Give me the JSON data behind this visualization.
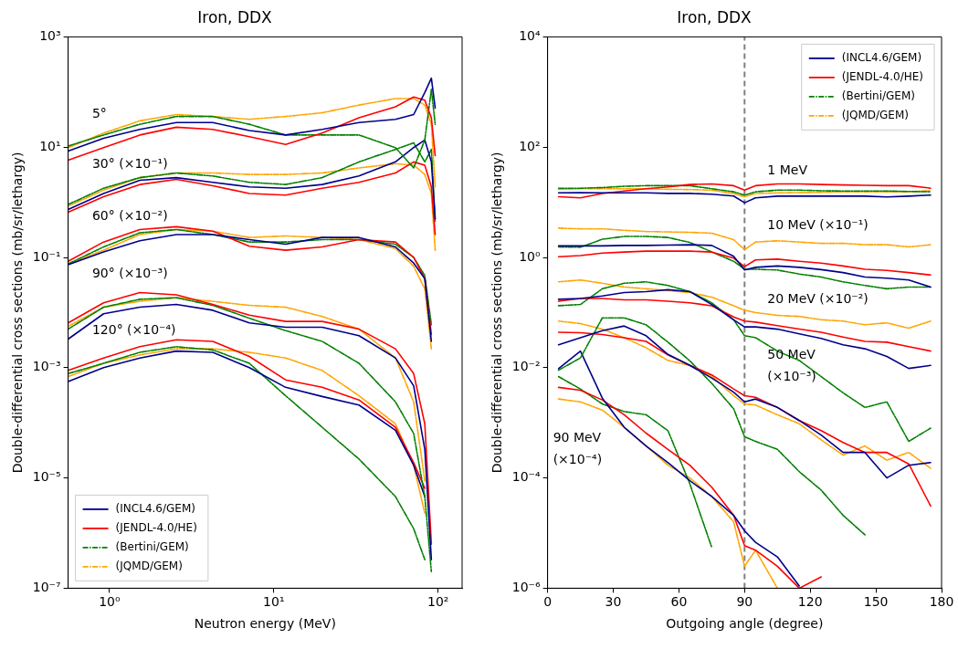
{
  "chart_data": [
    {
      "type": "line",
      "title": "Iron, DDX",
      "xlabel": "Neutron energy (MeV)",
      "ylabel": "Double-differential cross sections (mb/sr/lethargy)",
      "log": "xy",
      "grid": false,
      "legend": "bottom left",
      "xlim": [
        0.56,
        140
      ],
      "xticks": [
        {
          "value": 1,
          "label": "10⁰"
        },
        {
          "value": 10,
          "label": "10¹"
        },
        {
          "value": 100,
          "label": "10²"
        }
      ],
      "ylim": [
        1e-07,
        1000
      ],
      "yticks": [
        {
          "value": 1e-07,
          "label": "10⁻⁷"
        },
        {
          "value": 1e-05,
          "label": "10⁻⁵"
        },
        {
          "value": 0.001,
          "label": "10⁻³"
        },
        {
          "value": 0.1,
          "label": "10⁻¹"
        },
        {
          "value": 10,
          "label": "10¹"
        },
        {
          "value": 1000,
          "label": "10³"
        }
      ],
      "x": [
        0.56,
        0.92,
        1.53,
        2.55,
        4.25,
        7.1,
        11.8,
        19.7,
        33,
        55,
        71,
        83,
        91,
        96
      ],
      "annotations": [
        "5°",
        "30° (×10⁻¹)",
        "60° (×10⁻²)",
        "90° (×10⁻³)",
        "120° (×10⁻⁴)"
      ],
      "series": [
        {
          "name": "(INCL4.6/GEM)",
          "color": "#00008b",
          "line_style": "solid",
          "values": [
            8.5,
            14.5,
            21,
            28,
            28,
            20,
            16.6,
            21,
            28,
            32,
            39,
            98,
            178,
            51
          ]
        },
        {
          "name": "(JENDL-4.0/HE)",
          "color": "#ff0000",
          "line_style": "solid",
          "values": [
            5.8,
            9.8,
            16.6,
            23,
            21,
            15.5,
            11.2,
            18,
            34,
            54,
            81,
            71,
            34,
            7
          ]
        },
        {
          "name": "(Bertini/GEM)",
          "color": "#008000",
          "line_style": "dashdot",
          "values": [
            10.5,
            16.6,
            26,
            36,
            36,
            26,
            16.6,
            16.6,
            16.6,
            9.8,
            4.2,
            13.5,
            112,
            26
          ]
        },
        {
          "name": "(JQMD/GEM)",
          "color": "#ffa500",
          "line_style": "dashdot",
          "values": [
            9.8,
            18,
            30,
            39,
            36,
            32,
            36,
            42,
            58,
            76,
            76,
            58,
            26,
            1.9
          ]
        },
        {
          "color": "#00008b",
          "line_style": "solid",
          "values": [
            0.74,
            1.44,
            2.5,
            2.8,
            2.3,
            1.9,
            1.8,
            2.1,
            3.0,
            5.4,
            9.8,
            13.5,
            5.4,
            0.5
          ]
        },
        {
          "color": "#ff0000",
          "line_style": "solid",
          "values": [
            0.66,
            1.26,
            2.1,
            2.6,
            2.0,
            1.44,
            1.35,
            1.8,
            2.3,
            3.4,
            5.4,
            4.7,
            1.9,
            0.26
          ]
        },
        {
          "color": "#008000",
          "line_style": "dashdot",
          "values": [
            0.91,
            1.8,
            2.8,
            3.4,
            3.0,
            2.3,
            2.1,
            2.8,
            5.4,
            9.1,
            12,
            5.4,
            9.1,
            0.45
          ]
        },
        {
          "color": "#ffa500",
          "line_style": "dashdot",
          "values": [
            0.85,
            1.66,
            2.8,
            3.4,
            3.4,
            3.2,
            3.2,
            3.4,
            4.2,
            5.0,
            4.7,
            3.2,
            1.44,
            0.135
          ]
        },
        {
          "color": "#00008b",
          "line_style": "solid",
          "values": [
            0.074,
            0.126,
            0.2,
            0.26,
            0.26,
            0.21,
            0.174,
            0.23,
            0.23,
            0.155,
            0.079,
            0.041,
            0.003,
            null
          ]
        },
        {
          "color": "#ff0000",
          "line_style": "solid",
          "values": [
            0.085,
            0.19,
            0.32,
            0.36,
            0.3,
            0.16,
            0.135,
            0.155,
            0.21,
            0.19,
            0.1,
            0.041,
            0.004,
            null
          ]
        },
        {
          "color": "#008000",
          "line_style": "dashdot",
          "values": [
            0.076,
            0.155,
            0.28,
            0.32,
            0.26,
            0.19,
            0.19,
            0.21,
            0.21,
            0.174,
            0.1,
            0.047,
            0.006,
            null
          ]
        },
        {
          "color": "#ffa500",
          "line_style": "dashdot",
          "values": [
            0.076,
            0.135,
            0.26,
            0.32,
            0.3,
            0.23,
            0.245,
            0.23,
            0.21,
            0.145,
            0.069,
            0.027,
            0.0022,
            null
          ]
        },
        {
          "color": "#00008b",
          "line_style": "solid",
          "values": [
            0.0033,
            0.0095,
            0.0125,
            0.014,
            0.011,
            0.0065,
            0.0054,
            0.0054,
            0.0038,
            0.0015,
            0.00047,
            3.3e-05,
            3.3e-07,
            null
          ]
        },
        {
          "color": "#ff0000",
          "line_style": "solid",
          "values": [
            0.0065,
            0.015,
            0.023,
            0.021,
            0.014,
            0.009,
            0.0069,
            0.0069,
            0.005,
            0.0022,
            0.00078,
            9.6e-05,
            6.3e-07,
            null
          ]
        },
        {
          "color": "#008000",
          "line_style": "dashdot",
          "values": [
            0.005,
            0.0125,
            0.0174,
            0.0186,
            0.0135,
            0.0079,
            0.0047,
            0.003,
            0.0012,
            0.00024,
            6.4e-05,
            4.6e-06,
            2e-07,
            null
          ]
        },
        {
          "color": "#ffa500",
          "line_style": "dashdot",
          "values": [
            0.0056,
            0.0125,
            0.016,
            0.0186,
            0.016,
            0.0135,
            0.0125,
            0.0085,
            0.005,
            0.0015,
            0.00024,
            8.9e-06,
            null,
            null
          ]
        },
        {
          "color": "#00008b",
          "line_style": "solid",
          "values": [
            0.00056,
            0.001,
            0.0015,
            0.002,
            0.0019,
            0.001,
            0.00044,
            0.0003,
            0.00021,
            7.3e-05,
            1.7e-05,
            4.6e-06,
            null,
            null
          ]
        },
        {
          "color": "#ff0000",
          "line_style": "solid",
          "values": [
            0.00089,
            0.0015,
            0.0024,
            0.0032,
            0.003,
            0.0016,
            0.0006,
            0.00044,
            0.00026,
            8.3e-05,
            1.9e-05,
            6.5e-06,
            null,
            null
          ]
        },
        {
          "color": "#008000",
          "line_style": "dashdot",
          "values": [
            0.00078,
            0.0012,
            0.0019,
            0.0024,
            0.0021,
            0.0012,
            0.00031,
            8.3e-05,
            2.2e-05,
            4.6e-06,
            1.2e-06,
            3.3e-07,
            null,
            null
          ]
        },
        {
          "color": "#ffa500",
          "line_style": "dashdot",
          "values": [
            0.00069,
            0.0012,
            0.0017,
            0.0022,
            0.0022,
            0.0019,
            0.0015,
            0.00089,
            0.00031,
            9.6e-05,
            1.7e-05,
            2.3e-06,
            null,
            null
          ]
        }
      ]
    },
    {
      "type": "line",
      "title": "Iron, DDX",
      "xlabel": "Outgoing angle (degree)",
      "ylabel": "Double-differential cross sections (mb/sr/lethargy)",
      "log": "y",
      "grid": false,
      "legend": "top right",
      "xlim": [
        0,
        180
      ],
      "xticks": [
        0,
        30,
        60,
        90,
        120,
        150,
        180
      ],
      "ylim": [
        1e-06,
        10000
      ],
      "yticks": [
        {
          "value": 1e-06,
          "label": "10⁻⁶"
        },
        {
          "value": 0.0001,
          "label": "10⁻⁴"
        },
        {
          "value": 0.01,
          "label": "10⁻²"
        },
        {
          "value": 1,
          "label": "10⁰"
        },
        {
          "value": 100,
          "label": "10²"
        },
        {
          "value": 10000,
          "label": "10⁴"
        }
      ],
      "x": [
        5,
        15,
        25,
        35,
        45,
        55,
        65,
        75,
        85,
        90,
        95,
        105,
        115,
        125,
        135,
        145,
        155,
        165,
        175
      ],
      "ref_lines": [
        {
          "axis": "x",
          "value": 90,
          "color": "#808080",
          "line_style": "dashed"
        }
      ],
      "annotations": [
        "1 MeV",
        "10 MeV (×10⁻¹)",
        "20 MeV (×10⁻²)",
        "50 MeV\n(×10⁻³)",
        "90 MeV\n(×10⁻⁴)"
      ],
      "series": [
        {
          "name": "(INCL4.6/GEM)",
          "color": "#00008b",
          "line_style": "solid",
          "values": [
            14.8,
            15,
            14.8,
            14.8,
            14.8,
            14.5,
            14.5,
            14,
            13,
            9.8,
            12,
            12.9,
            12.9,
            12.9,
            12.9,
            12.9,
            12.5,
            12.9,
            13.5
          ]
        },
        {
          "name": "(JENDL-4.0/HE)",
          "color": "#ff0000",
          "line_style": "solid",
          "values": [
            12.6,
            12,
            14.4,
            16,
            17.6,
            19,
            21,
            21.5,
            20,
            16.6,
            20,
            21.5,
            21.5,
            21,
            20.6,
            20.3,
            20,
            20,
            18
          ]
        },
        {
          "name": "(Bertini/GEM)",
          "color": "#008000",
          "line_style": "dashdot",
          "values": [
            18,
            18,
            18.5,
            19.5,
            20,
            20,
            20,
            17.6,
            15.5,
            13.5,
            15.5,
            16.6,
            16.6,
            16.2,
            16,
            16,
            16,
            15.7,
            15.5
          ]
        },
        {
          "name": "(JQMD/GEM)",
          "color": "#ffa500",
          "line_style": "dashdot",
          "values": [
            17.2,
            17.6,
            17.6,
            17.6,
            17.6,
            17.2,
            17,
            16.6,
            14.4,
            12.6,
            14.4,
            14.8,
            15,
            15.2,
            15.5,
            15.5,
            15.5,
            15.5,
            16.2
          ]
        },
        {
          "color": "#00008b",
          "line_style": "solid",
          "values": [
            1.62,
            1.62,
            1.62,
            1.65,
            1.65,
            1.67,
            1.7,
            1.65,
            1.05,
            0.59,
            0.66,
            0.7,
            0.66,
            0.6,
            0.53,
            0.44,
            0.42,
            0.39,
            0.29
          ]
        },
        {
          "color": "#ff0000",
          "line_style": "solid",
          "values": [
            1.03,
            1.08,
            1.2,
            1.25,
            1.3,
            1.3,
            1.3,
            1.25,
            0.97,
            0.68,
            0.9,
            0.93,
            0.85,
            0.79,
            0.7,
            0.61,
            0.58,
            0.53,
            0.48
          ]
        },
        {
          "color": "#008000",
          "line_style": "dashdot",
          "values": [
            1.55,
            1.53,
            2.14,
            2.4,
            2.4,
            2.3,
            1.87,
            1.26,
            0.85,
            0.61,
            0.61,
            0.59,
            0.5,
            0.44,
            0.36,
            0.31,
            0.27,
            0.29,
            0.29
          ]
        },
        {
          "color": "#ffa500",
          "line_style": "dashdot",
          "values": [
            3.4,
            3.3,
            3.3,
            3.1,
            2.95,
            2.9,
            2.85,
            2.75,
            2.1,
            1.38,
            1.9,
            2.0,
            1.9,
            1.8,
            1.8,
            1.7,
            1.7,
            1.55,
            1.7
          ]
        },
        {
          "color": "#00008b",
          "line_style": "solid",
          "values": [
            0.174,
            0.18,
            0.2,
            0.23,
            0.24,
            0.26,
            0.24,
            0.14,
            0.074,
            0.055,
            0.055,
            0.05,
            0.041,
            0.034,
            0.026,
            0.022,
            0.016,
            0.0097,
            0.011
          ]
        },
        {
          "color": "#ff0000",
          "line_style": "solid",
          "values": [
            0.16,
            0.18,
            0.18,
            0.17,
            0.17,
            0.16,
            0.15,
            0.133,
            0.083,
            0.07,
            0.067,
            0.058,
            0.05,
            0.044,
            0.036,
            0.03,
            0.029,
            0.024,
            0.02
          ]
        },
        {
          "color": "#008000",
          "line_style": "dashdot",
          "values": [
            0.133,
            0.14,
            0.27,
            0.34,
            0.36,
            0.31,
            0.24,
            0.15,
            0.074,
            0.038,
            0.035,
            0.02,
            0.0135,
            0.0069,
            0.0035,
            0.0019,
            0.0024,
            0.00046,
            0.0008
          ]
        },
        {
          "color": "#ffa500",
          "line_style": "dashdot",
          "values": [
            0.36,
            0.39,
            0.34,
            0.29,
            0.27,
            0.25,
            0.23,
            0.19,
            0.133,
            0.11,
            0.1,
            0.089,
            0.085,
            0.074,
            0.07,
            0.06,
            0.065,
            0.052,
            0.07
          ]
        },
        {
          "color": "#00008b",
          "line_style": "solid",
          "values": [
            0.026,
            0.035,
            0.047,
            0.057,
            0.038,
            0.0174,
            0.011,
            0.0065,
            0.0036,
            0.0024,
            0.0027,
            0.0019,
            0.0011,
            0.0006,
            0.00029,
            0.00029,
            0.0001,
            0.00017,
            0.00019
          ]
        },
        {
          "color": "#ff0000",
          "line_style": "solid",
          "values": [
            0.044,
            0.043,
            0.04,
            0.035,
            0.03,
            0.017,
            0.011,
            0.0074,
            0.0041,
            0.0031,
            0.0029,
            0.0019,
            0.0011,
            0.00072,
            0.00044,
            0.00029,
            0.00029,
            0.00018,
            3.1e-05
          ]
        },
        {
          "color": "#008000",
          "line_style": "dashdot",
          "values": [
            0.009,
            0.015,
            0.08,
            0.08,
            0.06,
            0.029,
            0.0133,
            0.0052,
            0.0018,
            0.00056,
            0.00046,
            0.00033,
            0.00013,
            6e-05,
            2.1e-05,
            9.3e-06,
            null,
            null,
            null
          ]
        },
        {
          "color": "#ffa500",
          "line_style": "dashdot",
          "values": [
            0.07,
            0.063,
            0.05,
            0.035,
            0.023,
            0.0135,
            0.011,
            0.007,
            0.0031,
            0.0022,
            0.0021,
            0.0014,
            0.00096,
            0.00049,
            0.00026,
            0.00038,
            0.00021,
            0.00029,
            0.00015
          ]
        },
        {
          "color": "#00008b",
          "line_style": "solid",
          "values": [
            0.0096,
            0.02,
            0.0028,
            0.00083,
            0.00038,
            0.00019,
            8.9e-05,
            4.6e-05,
            2.1e-05,
            1.1e-05,
            6.8e-06,
            3.7e-06,
            1.1e-06,
            null,
            null,
            null,
            null,
            null,
            null
          ]
        },
        {
          "color": "#ff0000",
          "line_style": "solid",
          "values": [
            0.0044,
            0.0039,
            0.0026,
            0.0014,
            0.00065,
            0.00033,
            0.00017,
            6.8e-05,
            2.1e-05,
            5.9e-06,
            4.9e-06,
            2.5e-06,
            1e-06,
            1.6e-06,
            null,
            null,
            null,
            null,
            null
          ]
        },
        {
          "color": "#008000",
          "line_style": "dashdot",
          "values": [
            0.0069,
            0.0041,
            0.0022,
            0.0016,
            0.0014,
            0.00072,
            7.8e-05,
            5.5e-06,
            null,
            null,
            null,
            null,
            null,
            null,
            null,
            null,
            null,
            null,
            null
          ]
        },
        {
          "color": "#ffa500",
          "line_style": "dashdot",
          "values": [
            0.0027,
            0.0024,
            0.0017,
            0.00083,
            0.00038,
            0.00017,
            0.0001,
            4.6e-05,
            1.6e-05,
            2.5e-06,
            4.9e-06,
            1e-06,
            null,
            null,
            null,
            null,
            null,
            null,
            null
          ]
        }
      ]
    }
  ]
}
